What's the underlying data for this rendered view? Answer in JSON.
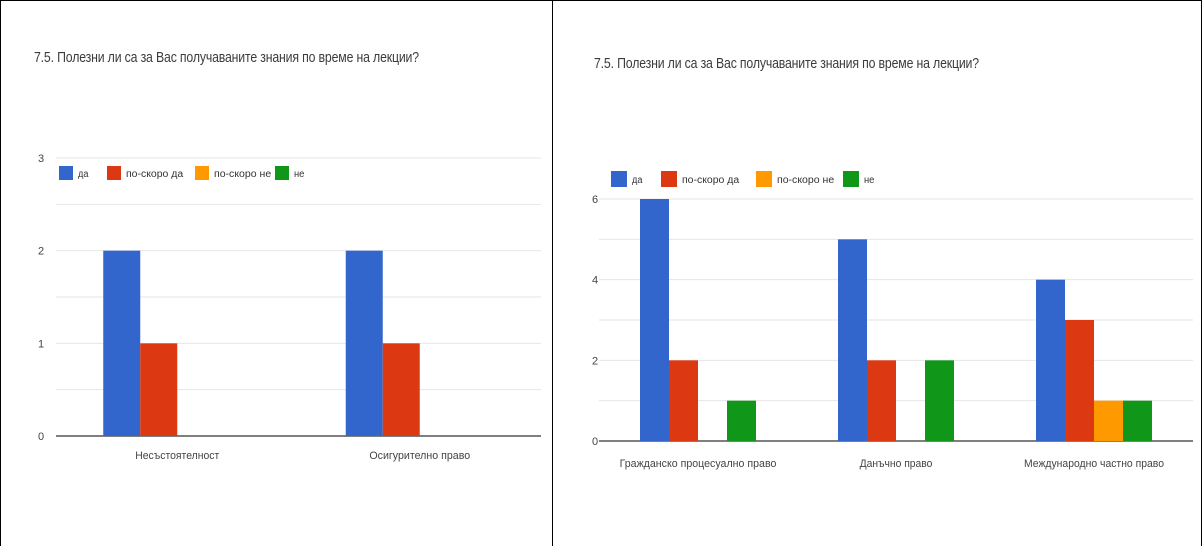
{
  "chart_data": [
    {
      "type": "bar",
      "title": "7.5. Полезни ли са за Вас получаваните знания по време на лекции?",
      "categories": [
        "Несъстоятелност",
        "Осигурително право"
      ],
      "series": [
        {
          "name": "да",
          "values": [
            2,
            2
          ]
        },
        {
          "name": "по-скоро да",
          "values": [
            1,
            1
          ]
        },
        {
          "name": "по-скоро не",
          "values": [
            0,
            0
          ]
        },
        {
          "name": "не",
          "values": [
            0,
            0
          ]
        }
      ],
      "yticks": [
        "0",
        "1",
        "2",
        "3"
      ],
      "ylim": [
        0,
        3
      ],
      "grid": true,
      "legend": "top-left",
      "colors": [
        "#3366cc",
        "#dc3912",
        "#ff9900",
        "#109618"
      ]
    },
    {
      "type": "bar",
      "title": "7.5. Полезни ли са за Вас получаваните знания по време на лекции?",
      "categories": [
        "Гражданско процесуално право",
        "Данъчно право",
        "Международно частно право"
      ],
      "series": [
        {
          "name": "да",
          "values": [
            6,
            5,
            4
          ]
        },
        {
          "name": "по-скоро да",
          "values": [
            2,
            2,
            3
          ]
        },
        {
          "name": "по-скоро не",
          "values": [
            0,
            0,
            1
          ]
        },
        {
          "name": "не",
          "values": [
            1,
            2,
            1
          ]
        }
      ],
      "yticks": [
        "0",
        "2",
        "4",
        "6"
      ],
      "ylim": [
        0,
        6
      ],
      "grid": true,
      "legend": "top-left",
      "colors": [
        "#3366cc",
        "#dc3912",
        "#ff9900",
        "#109618"
      ]
    }
  ]
}
